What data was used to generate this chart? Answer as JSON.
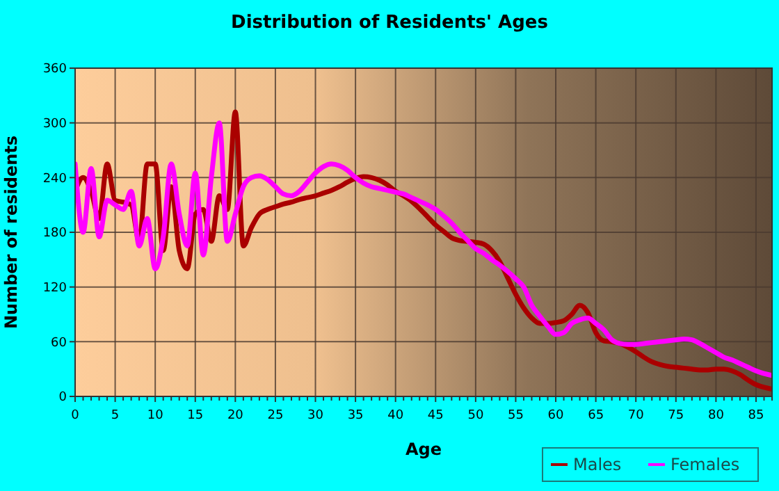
{
  "chart_data": {
    "type": "line",
    "title": "Distribution of Residents' Ages",
    "xlabel": "Age",
    "ylabel": "Number of residents",
    "xlim": [
      0,
      87
    ],
    "ylim": [
      0,
      360
    ],
    "yticks": [
      0,
      60,
      120,
      180,
      240,
      300,
      360
    ],
    "xticks": [
      0,
      {
        "value": 1,
        "label": null
      },
      {
        "value": 2,
        "label": null
      },
      {
        "value": 3,
        "label": null
      },
      {
        "value": 4,
        "label": null
      },
      5,
      {
        "value": 6,
        "label": null
      },
      {
        "value": 7,
        "label": null
      },
      {
        "value": 8,
        "label": null
      },
      {
        "value": 9,
        "label": null
      },
      10,
      {
        "value": 11,
        "label": null
      },
      {
        "value": 12,
        "label": null
      },
      {
        "value": 13,
        "label": null
      },
      {
        "value": 14,
        "label": null
      },
      15,
      {
        "value": 16,
        "label": null
      },
      {
        "value": 17,
        "label": null
      },
      {
        "value": 18,
        "label": null
      },
      {
        "value": 19,
        "label": null
      },
      20,
      {
        "value": 21,
        "label": null
      },
      {
        "value": 22,
        "label": null
      },
      {
        "value": 23,
        "label": null
      },
      {
        "value": 24,
        "label": null
      },
      25,
      {
        "value": 26,
        "label": null
      },
      {
        "value": 27,
        "label": null
      },
      {
        "value": 28,
        "label": null
      },
      {
        "value": 29,
        "label": null
      },
      30,
      {
        "value": 31,
        "label": null
      },
      {
        "value": 32,
        "label": null
      },
      {
        "value": 33,
        "label": null
      },
      {
        "value": 34,
        "label": null
      },
      35,
      {
        "value": 36,
        "label": null
      },
      {
        "value": 37,
        "label": null
      },
      {
        "value": 38,
        "label": null
      },
      {
        "value": 39,
        "label": null
      },
      40,
      {
        "value": 41,
        "label": null
      },
      {
        "value": 42,
        "label": null
      },
      {
        "value": 43,
        "label": null
      },
      {
        "value": 44,
        "label": null
      },
      45,
      {
        "value": 46,
        "label": null
      },
      {
        "value": 47,
        "label": null
      },
      {
        "value": 48,
        "label": null
      },
      {
        "value": 49,
        "label": null
      },
      50,
      {
        "value": 51,
        "label": null
      },
      {
        "value": 52,
        "label": null
      },
      {
        "value": 53,
        "label": null
      },
      {
        "value": 54,
        "label": null
      },
      55,
      {
        "value": 56,
        "label": null
      },
      {
        "value": 57,
        "label": null
      },
      {
        "value": 58,
        "label": null
      },
      {
        "value": 59,
        "label": null
      },
      60,
      {
        "value": 61,
        "label": null
      },
      {
        "value": 62,
        "label": null
      },
      {
        "value": 63,
        "label": null
      },
      {
        "value": 64,
        "label": null
      },
      65,
      {
        "value": 66,
        "label": null
      },
      {
        "value": 67,
        "label": null
      },
      {
        "value": 68,
        "label": null
      },
      {
        "value": 69,
        "label": null
      },
      70,
      {
        "value": 71,
        "label": null
      },
      {
        "value": 72,
        "label": null
      },
      {
        "value": 73,
        "label": null
      },
      {
        "value": 74,
        "label": null
      },
      75,
      {
        "value": 76,
        "label": null
      },
      {
        "value": 77,
        "label": null
      },
      {
        "value": 78,
        "label": null
      },
      {
        "value": 79,
        "label": null
      },
      80,
      {
        "value": 81,
        "label": null
      },
      {
        "value": 82,
        "label": null
      },
      {
        "value": 83,
        "label": null
      },
      {
        "value": 84,
        "label": null
      },
      85,
      {
        "value": 86,
        "label": null
      },
      {
        "value": 87,
        "label": null
      }
    ],
    "x": [
      0,
      1,
      2,
      3,
      4,
      5,
      6,
      7,
      8,
      9,
      10,
      11,
      12,
      13,
      14,
      15,
      16,
      17,
      18,
      19,
      20,
      21,
      22,
      23,
      24,
      25,
      26,
      27,
      28,
      29,
      30,
      31,
      32,
      33,
      34,
      35,
      36,
      37,
      38,
      39,
      40,
      41,
      42,
      43,
      44,
      45,
      46,
      47,
      48,
      49,
      50,
      51,
      52,
      53,
      54,
      55,
      56,
      57,
      58,
      59,
      60,
      61,
      62,
      63,
      64,
      65,
      66,
      67,
      68,
      69,
      70,
      71,
      72,
      73,
      74,
      75,
      76,
      77,
      78,
      79,
      80,
      81,
      82,
      83,
      84,
      85,
      86,
      87
    ],
    "grid": true,
    "legend": "bottom right",
    "marker": "none",
    "line_style": "solid",
    "series": [
      {
        "name": "Males",
        "color": "#aa0000",
        "values": [
          225,
          240,
          225,
          195,
          255,
          215,
          213,
          210,
          170,
          255,
          255,
          160,
          230,
          160,
          140,
          200,
          205,
          170,
          220,
          205,
          312,
          165,
          185,
          200,
          205,
          208,
          211,
          213,
          216,
          218,
          220,
          223,
          226,
          230,
          235,
          239,
          241,
          240,
          237,
          232,
          225,
          220,
          214,
          206,
          197,
          188,
          181,
          174,
          171,
          170,
          169,
          167,
          160,
          148,
          130,
          112,
          97,
          86,
          80,
          80,
          81,
          83,
          90,
          100,
          92,
          70,
          61,
          60,
          58,
          54,
          49,
          43,
          38,
          35,
          33,
          32,
          31,
          30,
          29,
          29,
          30,
          30,
          28,
          24,
          18,
          13,
          10,
          8
        ]
      },
      {
        "name": "Females",
        "color": "#ff00ff",
        "values": [
          255,
          180,
          250,
          175,
          215,
          210,
          205,
          225,
          165,
          195,
          140,
          175,
          255,
          200,
          165,
          245,
          155,
          240,
          300,
          170,
          200,
          230,
          240,
          242,
          238,
          230,
          222,
          220,
          225,
          235,
          245,
          252,
          255,
          253,
          248,
          240,
          234,
          230,
          228,
          226,
          224,
          222,
          218,
          214,
          210,
          205,
          198,
          190,
          180,
          171,
          162,
          157,
          150,
          144,
          137,
          129,
          120,
          100,
          88,
          77,
          68,
          70,
          80,
          84,
          86,
          80,
          73,
          62,
          58,
          57,
          57,
          58,
          59,
          60,
          61,
          62,
          63,
          62,
          58,
          53,
          48,
          43,
          40,
          36,
          32,
          28,
          25,
          23
        ]
      }
    ]
  }
}
